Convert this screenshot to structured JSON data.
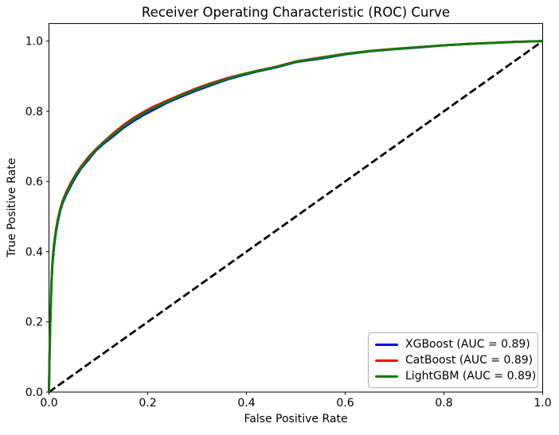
{
  "figure": {
    "background": "#ffffff"
  },
  "chart_data": {
    "type": "line",
    "title": "Receiver Operating Characteristic (ROC) Curve",
    "xlabel": "False Positive Rate",
    "ylabel": "True Positive Rate",
    "xlim": [
      0.0,
      1.0
    ],
    "ylim": [
      0.0,
      1.05
    ],
    "xticks": [
      0.0,
      0.2,
      0.4,
      0.6,
      0.8,
      1.0
    ],
    "xtick_labels": [
      "0.0",
      "0.2",
      "0.4",
      "0.6",
      "0.8",
      "1.0"
    ],
    "yticks": [
      0.0,
      0.2,
      0.4,
      0.6,
      0.8,
      1.0
    ],
    "ytick_labels": [
      "0.0",
      "0.2",
      "0.4",
      "0.6",
      "0.8",
      "1.0"
    ],
    "grid": false,
    "legend": {
      "position": "lower right"
    },
    "reference_line": {
      "style": "dashed",
      "color": "#000000",
      "points": [
        [
          0.0,
          0.0
        ],
        [
          1.0,
          1.0
        ]
      ]
    },
    "series": [
      {
        "id": "xgboost",
        "name": "XGBoost (AUC = 0.89)",
        "color": "#0000ff",
        "auc": 0.89,
        "points": [
          [
            0.0,
            0.0
          ],
          [
            0.001,
            0.085
          ],
          [
            0.002,
            0.155
          ],
          [
            0.003,
            0.215
          ],
          [
            0.005,
            0.305
          ],
          [
            0.007,
            0.36
          ],
          [
            0.01,
            0.41
          ],
          [
            0.014,
            0.455
          ],
          [
            0.018,
            0.487
          ],
          [
            0.023,
            0.518
          ],
          [
            0.028,
            0.54
          ],
          [
            0.035,
            0.562
          ],
          [
            0.045,
            0.59
          ],
          [
            0.055,
            0.615
          ],
          [
            0.065,
            0.637
          ],
          [
            0.08,
            0.662
          ],
          [
            0.095,
            0.688
          ],
          [
            0.11,
            0.707
          ],
          [
            0.13,
            0.729
          ],
          [
            0.15,
            0.752
          ],
          [
            0.17,
            0.771
          ],
          [
            0.19,
            0.788
          ],
          [
            0.21,
            0.803
          ],
          [
            0.24,
            0.825
          ],
          [
            0.27,
            0.843
          ],
          [
            0.3,
            0.86
          ],
          [
            0.33,
            0.875
          ],
          [
            0.36,
            0.89
          ],
          [
            0.39,
            0.902
          ],
          [
            0.42,
            0.913
          ],
          [
            0.46,
            0.925
          ],
          [
            0.5,
            0.94
          ],
          [
            0.55,
            0.95
          ],
          [
            0.6,
            0.962
          ],
          [
            0.65,
            0.971
          ],
          [
            0.7,
            0.977
          ],
          [
            0.75,
            0.982
          ],
          [
            0.8,
            0.988
          ],
          [
            0.85,
            0.992
          ],
          [
            0.9,
            0.995
          ],
          [
            0.95,
            0.998
          ],
          [
            1.0,
            1.0
          ]
        ]
      },
      {
        "id": "catboost",
        "name": "CatBoost (AUC = 0.89)",
        "color": "#ff0000",
        "auc": 0.89,
        "points": [
          [
            0.0,
            0.0
          ],
          [
            0.001,
            0.095
          ],
          [
            0.002,
            0.165
          ],
          [
            0.003,
            0.225
          ],
          [
            0.005,
            0.315
          ],
          [
            0.007,
            0.37
          ],
          [
            0.01,
            0.42
          ],
          [
            0.014,
            0.462
          ],
          [
            0.018,
            0.494
          ],
          [
            0.023,
            0.524
          ],
          [
            0.028,
            0.546
          ],
          [
            0.035,
            0.57
          ],
          [
            0.045,
            0.598
          ],
          [
            0.055,
            0.622
          ],
          [
            0.065,
            0.643
          ],
          [
            0.08,
            0.67
          ],
          [
            0.095,
            0.692
          ],
          [
            0.11,
            0.712
          ],
          [
            0.13,
            0.737
          ],
          [
            0.15,
            0.76
          ],
          [
            0.17,
            0.78
          ],
          [
            0.19,
            0.797
          ],
          [
            0.21,
            0.812
          ],
          [
            0.24,
            0.831
          ],
          [
            0.27,
            0.849
          ],
          [
            0.3,
            0.866
          ],
          [
            0.33,
            0.881
          ],
          [
            0.36,
            0.894
          ],
          [
            0.39,
            0.905
          ],
          [
            0.42,
            0.915
          ],
          [
            0.46,
            0.927
          ],
          [
            0.5,
            0.942
          ],
          [
            0.55,
            0.953
          ],
          [
            0.6,
            0.964
          ],
          [
            0.65,
            0.972
          ],
          [
            0.7,
            0.978
          ],
          [
            0.75,
            0.983
          ],
          [
            0.8,
            0.988
          ],
          [
            0.85,
            0.992
          ],
          [
            0.9,
            0.995
          ],
          [
            0.95,
            0.998
          ],
          [
            1.0,
            1.0
          ]
        ]
      },
      {
        "id": "lightgbm",
        "name": "LightGBM (AUC = 0.89)",
        "color": "#008000",
        "auc": 0.89,
        "points": [
          [
            0.0,
            0.0
          ],
          [
            0.001,
            0.09
          ],
          [
            0.002,
            0.16
          ],
          [
            0.003,
            0.22
          ],
          [
            0.005,
            0.31
          ],
          [
            0.007,
            0.365
          ],
          [
            0.01,
            0.415
          ],
          [
            0.014,
            0.458
          ],
          [
            0.018,
            0.49
          ],
          [
            0.023,
            0.521
          ],
          [
            0.028,
            0.543
          ],
          [
            0.035,
            0.566
          ],
          [
            0.045,
            0.594
          ],
          [
            0.055,
            0.619
          ],
          [
            0.065,
            0.64
          ],
          [
            0.08,
            0.666
          ],
          [
            0.095,
            0.69
          ],
          [
            0.11,
            0.71
          ],
          [
            0.13,
            0.733
          ],
          [
            0.15,
            0.756
          ],
          [
            0.17,
            0.776
          ],
          [
            0.19,
            0.793
          ],
          [
            0.21,
            0.808
          ],
          [
            0.24,
            0.828
          ],
          [
            0.27,
            0.846
          ],
          [
            0.3,
            0.863
          ],
          [
            0.33,
            0.878
          ],
          [
            0.36,
            0.892
          ],
          [
            0.39,
            0.904
          ],
          [
            0.42,
            0.914
          ],
          [
            0.46,
            0.926
          ],
          [
            0.5,
            0.941
          ],
          [
            0.55,
            0.952
          ],
          [
            0.6,
            0.963
          ],
          [
            0.65,
            0.9715
          ],
          [
            0.7,
            0.9775
          ],
          [
            0.75,
            0.9825
          ],
          [
            0.8,
            0.988
          ],
          [
            0.85,
            0.992
          ],
          [
            0.9,
            0.995
          ],
          [
            0.95,
            0.998
          ],
          [
            1.0,
            1.0
          ]
        ]
      }
    ]
  }
}
